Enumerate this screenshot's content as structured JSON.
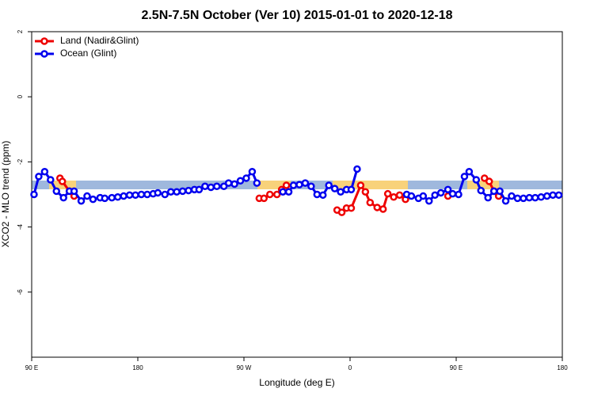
{
  "chart_data": {
    "type": "line",
    "title": "2.5N-7.5N October (Ver 10)   2015-01-01 to 2020-12-18",
    "xlabel": "Longitude (deg E)",
    "ylabel": "XCO2 - MLO trend (ppm)",
    "xlim": [
      90,
      540
    ],
    "ylim": [
      -8,
      2
    ],
    "xticks": [
      {
        "value": 90,
        "label": "90 E"
      },
      180,
      {
        "value": 270,
        "label": "90 W"
      },
      {
        "value": 360,
        "label": "0"
      },
      {
        "value": 450,
        "label": "90 E"
      },
      {
        "value": 540,
        "label": "180"
      }
    ],
    "yticks": [
      2,
      0,
      -2,
      -4,
      -6
    ],
    "legend": "top-left",
    "series": [
      {
        "name": "Land (Nadir&Glint)",
        "color": "#ee0000",
        "x": [
          114,
          116,
          122,
          126,
          null,
          283,
          287,
          292,
          298,
          302,
          306,
          null,
          349,
          353,
          357,
          361,
          369,
          373,
          377,
          383,
          388,
          392,
          397,
          402,
          407,
          null,
          443,
          null,
          474,
          478,
          482,
          486
        ],
        "values": [
          -2.5,
          -2.6,
          -2.9,
          -3.05,
          null,
          -3.12,
          -3.12,
          -3.0,
          -3.0,
          -2.85,
          -2.72,
          null,
          -3.48,
          -3.55,
          -3.42,
          -3.42,
          -2.72,
          -2.92,
          -3.25,
          -3.4,
          -3.45,
          -2.98,
          -3.08,
          -3.02,
          -3.15,
          null,
          -3.05,
          null,
          -2.5,
          -2.6,
          -2.9,
          -3.05
        ]
      },
      {
        "name": "Ocean (Glint)",
        "color": "#0000ee",
        "x": [
          92,
          96,
          101,
          106,
          111,
          117,
          122,
          126,
          132,
          137,
          142,
          148,
          152,
          158,
          163,
          168,
          173,
          178,
          183,
          188,
          193,
          197,
          203,
          208,
          213,
          218,
          223,
          228,
          232,
          237,
          242,
          247,
          253,
          257,
          262,
          267,
          272,
          277,
          281,
          null,
          303,
          308,
          312,
          317,
          322,
          327,
          332,
          337,
          342,
          347,
          352,
          357,
          361,
          366,
          null,
          408,
          412,
          418,
          422,
          427,
          432,
          437,
          443,
          447,
          452,
          457,
          461,
          467,
          471,
          477,
          482,
          487,
          492,
          497,
          502,
          507,
          512,
          517,
          522,
          527,
          532,
          537
        ],
        "values": [
          -3.0,
          -2.45,
          -2.3,
          -2.55,
          -2.9,
          -3.1,
          -2.9,
          -2.9,
          -3.2,
          -3.05,
          -3.15,
          -3.1,
          -3.12,
          -3.1,
          -3.08,
          -3.05,
          -3.02,
          -3.02,
          -3.0,
          -3.0,
          -2.98,
          -2.95,
          -3.0,
          -2.92,
          -2.92,
          -2.9,
          -2.88,
          -2.85,
          -2.85,
          -2.75,
          -2.78,
          -2.75,
          -2.75,
          -2.65,
          -2.68,
          -2.58,
          -2.5,
          -2.3,
          -2.65,
          null,
          -2.92,
          -2.92,
          -2.72,
          -2.7,
          -2.65,
          -2.75,
          -3.0,
          -3.02,
          -2.72,
          -2.82,
          -2.92,
          -2.85,
          -2.85,
          -2.22,
          null,
          -3.0,
          -3.05,
          -3.12,
          -3.05,
          -3.2,
          -3.02,
          -2.95,
          -2.85,
          -2.98,
          -3.0,
          -2.45,
          -2.3,
          -2.55,
          -2.88,
          -3.1,
          -2.9,
          -2.9,
          -3.2,
          -3.05,
          -3.12,
          -3.12,
          -3.1,
          -3.1,
          -3.08,
          -3.05,
          -3.02,
          -3.02
        ]
      }
    ]
  }
}
